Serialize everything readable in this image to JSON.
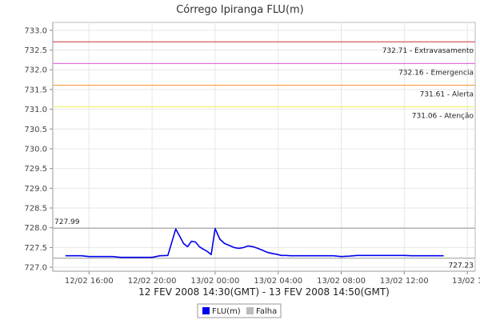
{
  "chart_data": {
    "type": "line",
    "title": "Córrego Ipiranga FLU(m)",
    "subtitle": "12 FEV 2008 14:30(GMT) - 13 FEV 2008 14:50(GMT)",
    "xlabel": "",
    "ylabel": "",
    "x_tick_labels": [
      "12/02 16:00",
      "12/02 20:00",
      "13/02 00:00",
      "13/02 04:00",
      "13/02 08:00",
      "13/02 12:00",
      "13/02 1"
    ],
    "x_tick_hours": [
      16,
      20,
      24,
      28,
      32,
      36,
      40
    ],
    "xlim_hours": [
      13.7,
      40.5
    ],
    "ylim": [
      726.9,
      733.2
    ],
    "y_ticks": [
      727.0,
      727.5,
      728.0,
      728.5,
      729.0,
      729.5,
      730.0,
      730.5,
      731.0,
      731.5,
      732.0,
      732.5,
      733.0
    ],
    "y_tick_labels": [
      "727.0",
      "727.5",
      "728.0",
      "728.5",
      "729.0",
      "729.5",
      "730.0",
      "730.5",
      "731.0",
      "731.5",
      "732.0",
      "732.5",
      "733.0"
    ],
    "grid": true,
    "reference_lines": [
      {
        "value": 732.71,
        "label": "732.71 - Extravasamento",
        "color": "#cc3333"
      },
      {
        "value": 732.16,
        "label": "732.16 - Emergencia",
        "color": "#dd55dd"
      },
      {
        "value": 731.61,
        "label": "731.61 - Alerta",
        "color": "#ff9933"
      },
      {
        "value": 731.06,
        "label": "731.06 - Atenção",
        "color": "#eeee55"
      },
      {
        "value": 727.99,
        "label": "727.99",
        "color": "#999999",
        "label_side": "left"
      },
      {
        "value": 727.23,
        "label": "727.23",
        "color": "#999999",
        "label_side": "right"
      }
    ],
    "series": [
      {
        "name": "FLU(m)",
        "color": "#0000ee",
        "x_hours": [
          14.5,
          15.5,
          16.0,
          16.5,
          17.0,
          17.5,
          18.0,
          18.5,
          19.0,
          19.5,
          20.0,
          20.5,
          21.0,
          21.5,
          22.0,
          22.25,
          22.5,
          22.75,
          23.0,
          23.25,
          23.5,
          23.75,
          24.0,
          24.3,
          24.6,
          24.9,
          25.2,
          25.5,
          25.8,
          26.1,
          26.4,
          26.7,
          27.0,
          27.3,
          27.6,
          27.9,
          28.2,
          28.5,
          28.8,
          29.0,
          29.5,
          30.0,
          30.5,
          31.0,
          31.5,
          32.0,
          32.5,
          33.0,
          33.5,
          34.0,
          34.5,
          35.0,
          35.5,
          36.0,
          36.5,
          37.0,
          37.5,
          38.0,
          38.5
        ],
        "values": [
          727.29,
          727.29,
          727.27,
          727.27,
          727.27,
          727.27,
          727.25,
          727.25,
          727.25,
          727.25,
          727.25,
          727.29,
          727.3,
          727.97,
          727.6,
          727.52,
          727.66,
          727.64,
          727.52,
          727.46,
          727.4,
          727.32,
          727.98,
          727.71,
          727.6,
          727.55,
          727.5,
          727.48,
          727.5,
          727.54,
          727.52,
          727.48,
          727.43,
          727.38,
          727.35,
          727.33,
          727.3,
          727.3,
          727.29,
          727.29,
          727.29,
          727.29,
          727.29,
          727.29,
          727.29,
          727.27,
          727.28,
          727.3,
          727.3,
          727.3,
          727.3,
          727.3,
          727.3,
          727.3,
          727.29,
          727.29,
          727.29,
          727.29,
          727.29
        ]
      }
    ],
    "legend": {
      "placement": "bottom-center",
      "entries": [
        {
          "label": "FLU(m)",
          "color": "#0000ee"
        },
        {
          "label": "Falha",
          "color": "#bbbbbb"
        }
      ]
    }
  }
}
